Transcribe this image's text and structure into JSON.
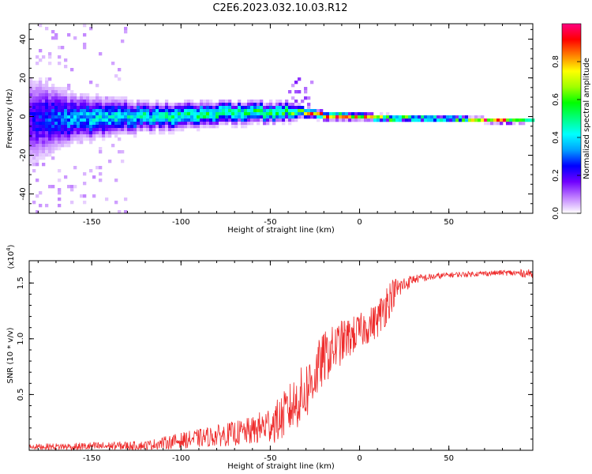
{
  "title": "C2E6.2023.032.10.03.R12",
  "colors": {
    "snr_line": "#ee2b2b",
    "axis": "#000000",
    "background": "#ffffff"
  },
  "chart_data": [
    {
      "type": "heatmap",
      "xlabel": "Height of straight line (km)",
      "ylabel": "Frequency (Hz)",
      "xlim": [
        -185,
        97
      ],
      "ylim": [
        -50,
        48
      ],
      "xticks": [
        "-150",
        "-100",
        "-50",
        "0",
        "50"
      ],
      "xtick_values": [
        -150,
        -100,
        -50,
        0,
        50
      ],
      "yticks": [
        "40",
        "20",
        "0",
        "-20",
        "-40"
      ],
      "ytick_values": [
        40,
        20,
        0,
        -20,
        -40
      ],
      "colorbar": {
        "label": "Normalized spectral amplitude",
        "range": [
          0,
          1
        ],
        "ticks": [
          "0.0",
          "0.2",
          "0.4",
          "0.6",
          "0.8"
        ],
        "tick_values": [
          0,
          0.2,
          0.4,
          0.6,
          0.8
        ],
        "colormap": [
          "#ffffff",
          "#c080ff",
          "#7000ff",
          "#0000ff",
          "#00a0ff",
          "#00ffff",
          "#00ff80",
          "#00ff00",
          "#a0ff00",
          "#ffff00",
          "#ff8000",
          "#ff0000",
          "#ff0080"
        ]
      },
      "centerline": [
        {
          "x": -185,
          "y": -2
        },
        {
          "x": -170,
          "y": -1
        },
        {
          "x": -150,
          "y": -1
        },
        {
          "x": -130,
          "y": 0
        },
        {
          "x": -110,
          "y": 0
        },
        {
          "x": -90,
          "y": 1
        },
        {
          "x": -70,
          "y": 2
        },
        {
          "x": -50,
          "y": 2
        },
        {
          "x": -35,
          "y": 3
        },
        {
          "x": -25,
          "y": 1
        },
        {
          "x": -10,
          "y": 0
        },
        {
          "x": 0,
          "y": 0
        },
        {
          "x": 20,
          "y": -1
        },
        {
          "x": 50,
          "y": -1
        },
        {
          "x": 80,
          "y": -2
        },
        {
          "x": 97,
          "y": -2
        }
      ],
      "spread_hz": [
        {
          "x": -185,
          "w": 20
        },
        {
          "x": -160,
          "w": 10
        },
        {
          "x": -120,
          "w": 6
        },
        {
          "x": -80,
          "w": 5
        },
        {
          "x": -40,
          "w": 4
        },
        {
          "x": -30,
          "w": 2
        },
        {
          "x": 0,
          "w": 1.5
        },
        {
          "x": 50,
          "w": 1.2
        },
        {
          "x": 97,
          "w": 1
        }
      ],
      "peak_amplitude": [
        {
          "x": -185,
          "a": 0.2
        },
        {
          "x": -160,
          "a": 0.35
        },
        {
          "x": -120,
          "a": 0.45
        },
        {
          "x": -80,
          "a": 0.5
        },
        {
          "x": -50,
          "a": 0.55
        },
        {
          "x": -35,
          "a": 0.6
        },
        {
          "x": -25,
          "a": 0.8
        },
        {
          "x": 0,
          "a": 0.85
        },
        {
          "x": 20,
          "a": 0.7
        },
        {
          "x": 50,
          "a": 0.6
        },
        {
          "x": 70,
          "a": 0.8
        },
        {
          "x": 85,
          "a": 0.9
        },
        {
          "x": 97,
          "a": 0.4
        }
      ]
    },
    {
      "type": "line",
      "xlabel": "Height of straight line (km)",
      "ylabel": "SNR (10 * v/v)",
      "multiplier": "(x10",
      "multiplier_exp": "4",
      "multiplier_close": ")",
      "xlim": [
        -185,
        97
      ],
      "ylim": [
        0,
        1.7
      ],
      "xticks": [
        "-150",
        "-100",
        "-50",
        "0",
        "50"
      ],
      "xtick_values": [
        -150,
        -100,
        -50,
        0,
        50
      ],
      "yticks": [
        "0.5",
        "1.0",
        "1.5"
      ],
      "ytick_values": [
        0.5,
        1.0,
        1.5
      ],
      "series": [
        {
          "envelope": [
            {
              "x": -185,
              "mean": 0.03,
              "noise": 0.03
            },
            {
              "x": -150,
              "mean": 0.03,
              "noise": 0.05
            },
            {
              "x": -120,
              "mean": 0.04,
              "noise": 0.05
            },
            {
              "x": -100,
              "mean": 0.08,
              "noise": 0.09
            },
            {
              "x": -80,
              "mean": 0.12,
              "noise": 0.12
            },
            {
              "x": -60,
              "mean": 0.16,
              "noise": 0.16
            },
            {
              "x": -45,
              "mean": 0.25,
              "noise": 0.25
            },
            {
              "x": -30,
              "mean": 0.5,
              "noise": 0.35
            },
            {
              "x": -20,
              "mean": 0.8,
              "noise": 0.3
            },
            {
              "x": -10,
              "mean": 0.95,
              "noise": 0.25
            },
            {
              "x": 0,
              "mean": 1.05,
              "noise": 0.2
            },
            {
              "x": 10,
              "mean": 1.15,
              "noise": 0.2
            },
            {
              "x": 15,
              "mean": 1.3,
              "noise": 0.25
            },
            {
              "x": 20,
              "mean": 1.42,
              "noise": 0.15
            },
            {
              "x": 30,
              "mean": 1.53,
              "noise": 0.05
            },
            {
              "x": 50,
              "mean": 1.57,
              "noise": 0.03
            },
            {
              "x": 80,
              "mean": 1.59,
              "noise": 0.03
            },
            {
              "x": 97,
              "mean": 1.58,
              "noise": 0.05
            }
          ]
        }
      ]
    }
  ]
}
